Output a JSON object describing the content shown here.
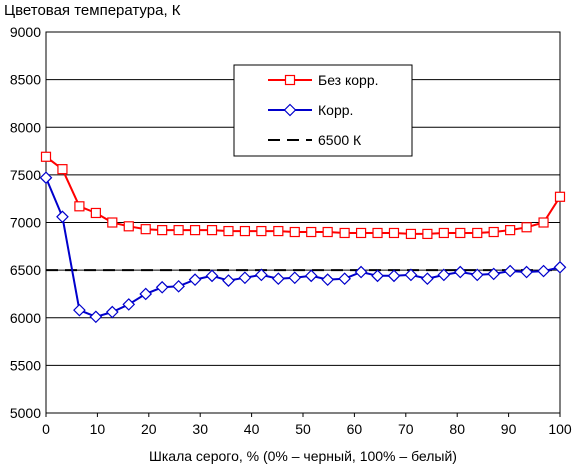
{
  "chart_data": {
    "type": "line",
    "title": "Цветовая температура, К",
    "xlabel": "Шкала серого, % (0% – черный, 100% – белый)",
    "ylabel": "",
    "xlim": [
      0,
      100
    ],
    "ylim": [
      5000,
      9000
    ],
    "x_ticks": [
      "0",
      "10",
      "20",
      "30",
      "40",
      "50",
      "60",
      "70",
      "80",
      "90",
      "100"
    ],
    "y_ticks": [
      "5000",
      "5500",
      "6000",
      "6500",
      "7000",
      "7500",
      "8000",
      "8500",
      "9000"
    ],
    "grid": "horizontal",
    "legend_position": "top-center",
    "series": [
      {
        "name": "Без корр.",
        "color": "#ff0000",
        "marker": "square",
        "x": [
          0,
          3.2,
          6.5,
          9.7,
          12.9,
          16.1,
          19.4,
          22.6,
          25.8,
          29,
          32.3,
          35.5,
          38.7,
          41.9,
          45.2,
          48.4,
          51.6,
          54.8,
          58.1,
          61.3,
          64.5,
          67.7,
          71,
          74.2,
          77.4,
          80.6,
          83.9,
          87.1,
          90.3,
          93.5,
          96.8,
          100
        ],
        "values": [
          7690,
          7560,
          7170,
          7100,
          7000,
          6960,
          6930,
          6920,
          6920,
          6920,
          6920,
          6910,
          6910,
          6910,
          6910,
          6900,
          6900,
          6900,
          6890,
          6890,
          6890,
          6890,
          6880,
          6880,
          6890,
          6890,
          6890,
          6900,
          6920,
          6950,
          7000,
          7270
        ]
      },
      {
        "name": "Корр.",
        "color": "#0000cc",
        "marker": "diamond",
        "x": [
          0,
          3.2,
          6.5,
          9.7,
          12.9,
          16.1,
          19.4,
          22.6,
          25.8,
          29,
          32.3,
          35.5,
          38.7,
          41.9,
          45.2,
          48.4,
          51.6,
          54.8,
          58.1,
          61.3,
          64.5,
          67.7,
          71,
          74.2,
          77.4,
          80.6,
          83.9,
          87.1,
          90.3,
          93.5,
          96.8,
          100
        ],
        "values": [
          7470,
          7060,
          6080,
          6010,
          6060,
          6140,
          6250,
          6320,
          6330,
          6400,
          6440,
          6390,
          6420,
          6450,
          6410,
          6420,
          6440,
          6400,
          6410,
          6480,
          6440,
          6440,
          6450,
          6410,
          6450,
          6480,
          6450,
          6460,
          6490,
          6480,
          6490,
          6530
        ]
      },
      {
        "name": "6500 К",
        "color": "#000000",
        "marker": "none",
        "dashed": true,
        "x": [
          0,
          100
        ],
        "values": [
          6500,
          6500
        ]
      }
    ]
  }
}
